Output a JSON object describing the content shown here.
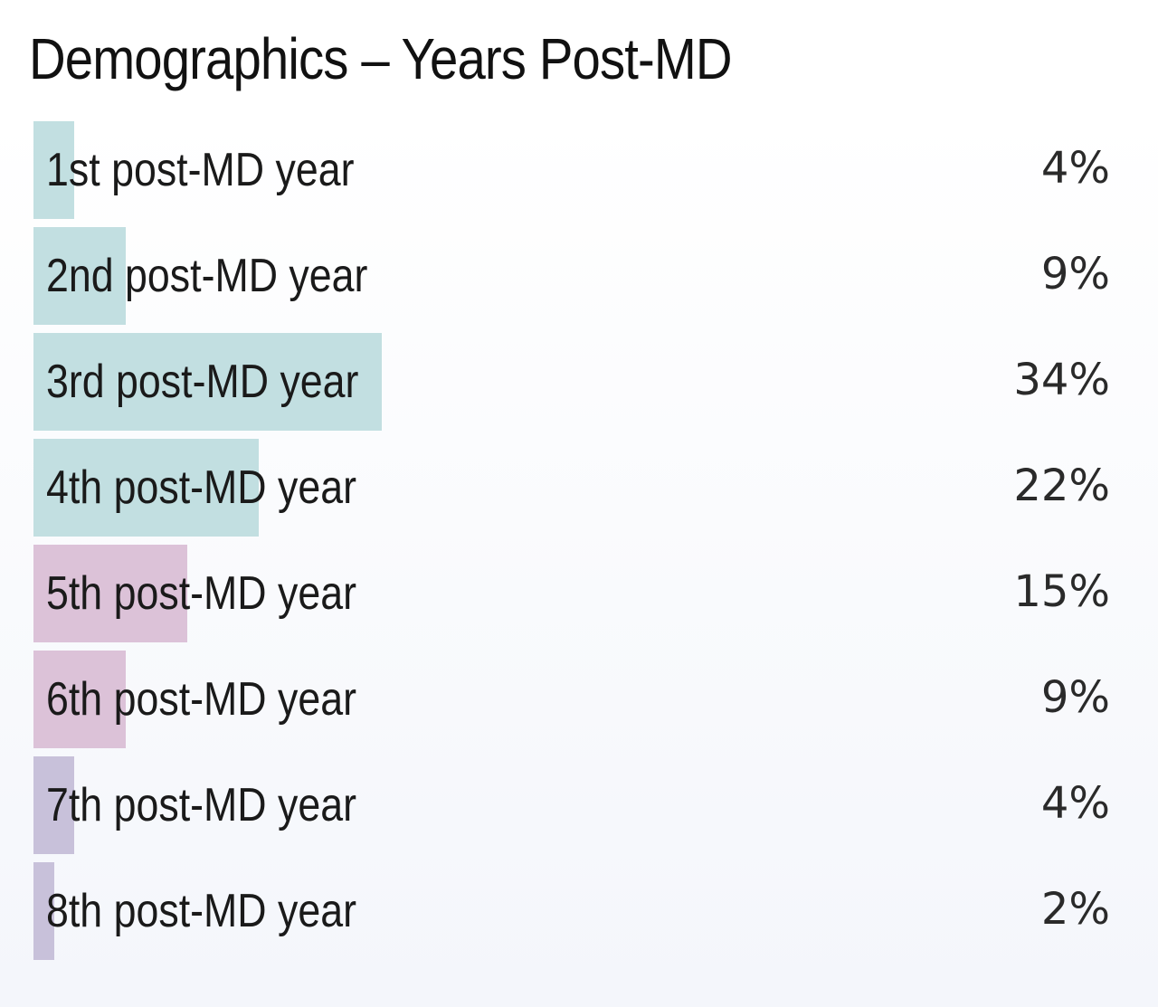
{
  "title": "Demographics – Years Post-MD",
  "chart_data": {
    "type": "bar",
    "orientation": "horizontal",
    "title": "Demographics – Years Post-MD",
    "categories": [
      "1st post-MD year",
      "2nd post-MD year",
      "3rd post-MD year",
      "4th post-MD year",
      "5th post-MD year",
      "6th post-MD year",
      "7th post-MD year",
      "8th post-MD year"
    ],
    "values": [
      4,
      9,
      34,
      22,
      15,
      9,
      4,
      2
    ],
    "value_labels": [
      "4%",
      "9%",
      "34%",
      "22%",
      "15%",
      "9%",
      "4%",
      "2%"
    ],
    "unit": "%",
    "xlim": [
      0,
      100
    ],
    "grid": false,
    "legend": "none",
    "colors": [
      "#c2dfe1",
      "#c2dfe1",
      "#c2dfe1",
      "#c2dfe1",
      "#dcc2d8",
      "#dcc2d8",
      "#c8c1da",
      "#c8c1da"
    ]
  }
}
